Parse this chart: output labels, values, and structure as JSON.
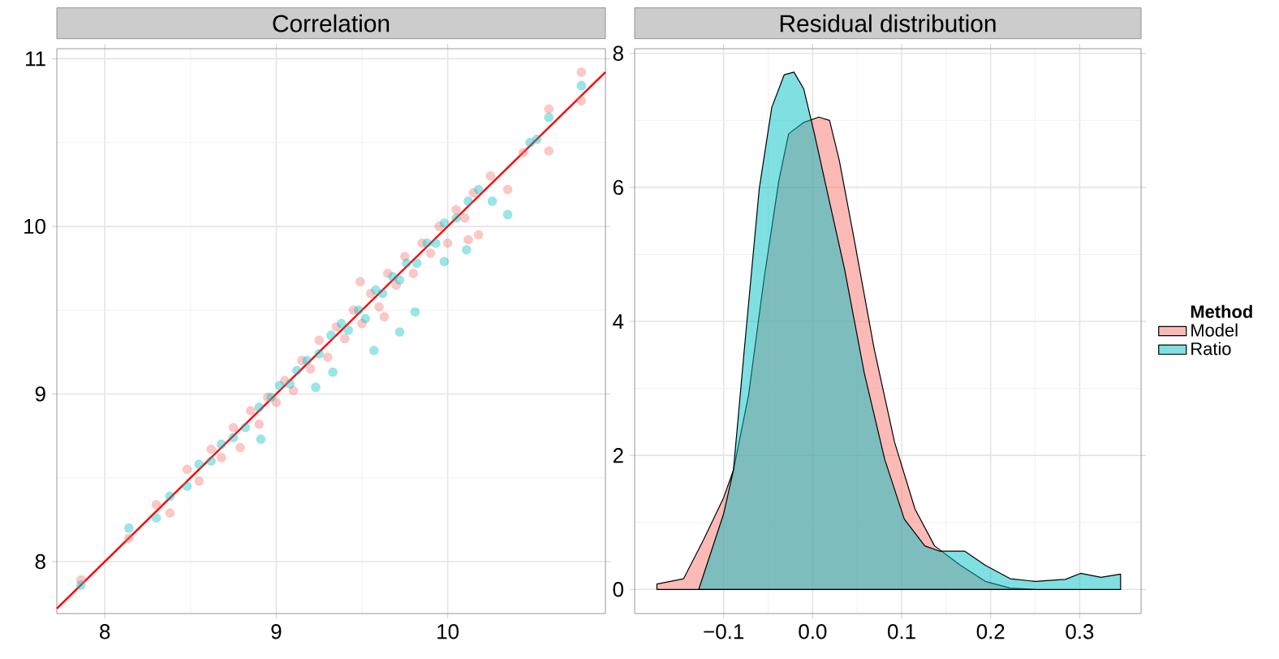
{
  "chart_data": [
    {
      "type": "scatter",
      "title": "Correlation",
      "xlim": [
        7.72,
        10.92
      ],
      "ylim": [
        7.69,
        11.06
      ],
      "xticks": [
        8,
        9,
        10
      ],
      "yticks": [
        8,
        9,
        10,
        11
      ],
      "grid": true,
      "series": [
        {
          "color": "#f8766d",
          "marker": "circle",
          "x": [
            7.86,
            8.14,
            8.3,
            8.38,
            8.48,
            8.55,
            8.62,
            8.68,
            8.75,
            8.79,
            8.85,
            8.9,
            8.95,
            9.0,
            9.05,
            9.1,
            9.15,
            9.2,
            9.25,
            9.3,
            9.35,
            9.4,
            9.45,
            9.49,
            9.5,
            9.55,
            9.6,
            9.63,
            9.65,
            9.7,
            9.75,
            9.8,
            9.85,
            9.9,
            9.95,
            10.0,
            10.05,
            10.1,
            10.12,
            10.15,
            10.18,
            10.25,
            10.35,
            10.44,
            10.59,
            10.59,
            10.78,
            10.78
          ],
          "values": [
            7.89,
            8.14,
            8.34,
            8.29,
            8.55,
            8.48,
            8.67,
            8.62,
            8.8,
            8.68,
            8.9,
            8.82,
            8.98,
            8.95,
            9.08,
            9.02,
            9.2,
            9.15,
            9.32,
            9.22,
            9.4,
            9.33,
            9.5,
            9.67,
            9.42,
            9.6,
            9.52,
            9.46,
            9.72,
            9.65,
            9.82,
            9.72,
            9.9,
            9.84,
            10.0,
            9.9,
            10.1,
            10.05,
            9.92,
            10.2,
            9.95,
            10.3,
            10.22,
            10.44,
            10.45,
            10.7,
            10.75,
            10.92
          ]
        },
        {
          "color": "#00bfc4",
          "marker": "circle",
          "x": [
            7.86,
            8.14,
            8.3,
            8.38,
            8.48,
            8.55,
            8.62,
            8.68,
            8.75,
            8.82,
            8.91,
            8.9,
            8.97,
            9.02,
            9.08,
            9.12,
            9.18,
            9.23,
            9.25,
            9.33,
            9.32,
            9.38,
            9.42,
            9.48,
            9.52,
            9.57,
            9.58,
            9.62,
            9.68,
            9.72,
            9.72,
            9.76,
            9.81,
            9.82,
            9.88,
            9.93,
            9.98,
            9.98,
            10.05,
            10.11,
            10.12,
            10.18,
            10.26,
            10.35,
            10.48,
            10.52,
            10.59,
            10.78
          ],
          "values": [
            7.86,
            8.2,
            8.26,
            8.39,
            8.45,
            8.58,
            8.6,
            8.7,
            8.74,
            8.8,
            8.73,
            8.92,
            8.98,
            9.05,
            9.06,
            9.14,
            9.2,
            9.04,
            9.24,
            9.13,
            9.35,
            9.42,
            9.38,
            9.5,
            9.45,
            9.26,
            9.62,
            9.6,
            9.7,
            9.37,
            9.68,
            9.78,
            9.49,
            9.78,
            9.9,
            9.9,
            9.79,
            10.02,
            10.05,
            9.86,
            10.15,
            10.22,
            10.15,
            10.07,
            10.5,
            10.52,
            10.65,
            10.84
          ]
        },
        {
          "type": "line",
          "marker": "none",
          "color": "#ff0000",
          "x": [
            7.72,
            10.92
          ],
          "values": [
            7.72,
            10.92
          ]
        }
      ]
    },
    {
      "type": "area",
      "title": "Residual distribution",
      "legend_title": "Method",
      "legend": "right",
      "xlim": [
        -0.2,
        0.369
      ],
      "ylim": [
        -0.36,
        8.07
      ],
      "xticks": [
        {
          "value": -0.1,
          "label": "−0.1"
        },
        {
          "value": 0,
          "label": "0.0"
        },
        0.1,
        0.2,
        0.3
      ],
      "yticks": [
        0,
        2,
        4,
        6,
        8
      ],
      "grid": true,
      "series": [
        {
          "name": "Model",
          "color": "#f8766d",
          "x": [
            -0.175,
            -0.145,
            -0.123,
            -0.1,
            -0.089,
            -0.072,
            -0.055,
            -0.038,
            -0.027,
            -0.01,
            0.007,
            0.019,
            0.03,
            0.047,
            0.069,
            0.092,
            0.115,
            0.137,
            0.166,
            0.194,
            0.222,
            0.25
          ],
          "values": [
            0.08,
            0.16,
            0.73,
            1.37,
            1.78,
            2.9,
            4.6,
            6.1,
            6.8,
            6.97,
            7.05,
            7.0,
            6.4,
            5.2,
            3.6,
            2.2,
            1.2,
            0.65,
            0.36,
            0.12,
            0.02,
            0
          ]
        },
        {
          "name": "Ratio",
          "color": "#00bfc4",
          "x": [
            -0.128,
            -0.1,
            -0.089,
            -0.077,
            -0.06,
            -0.046,
            -0.032,
            -0.021,
            -0.01,
            0.002,
            0.013,
            0.036,
            0.058,
            0.081,
            0.103,
            0.126,
            0.143,
            0.171,
            0.194,
            0.222,
            0.25,
            0.284,
            0.301,
            0.324,
            0.346
          ],
          "values": [
            0.0,
            1.13,
            1.78,
            3.55,
            5.98,
            7.19,
            7.68,
            7.72,
            7.47,
            6.8,
            6.14,
            4.77,
            3.23,
            1.94,
            1.05,
            0.65,
            0.57,
            0.57,
            0.36,
            0.16,
            0.12,
            0.15,
            0.24,
            0.18,
            0.23
          ]
        }
      ]
    }
  ]
}
